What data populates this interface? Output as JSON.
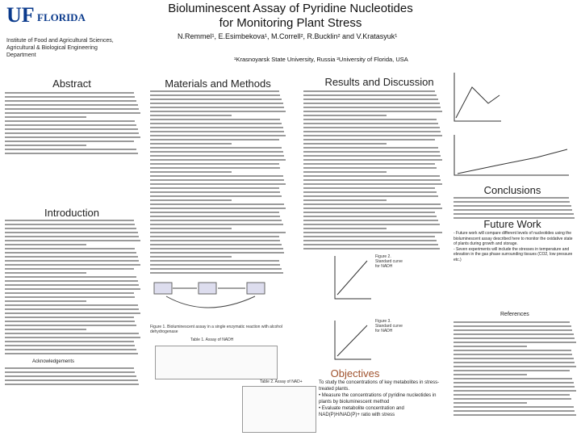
{
  "header": {
    "logo": "UF",
    "logo_sub": "FLORIDA",
    "institute": "Institute of Food and Agricultural Sciences, Agricultural & Biological Engineering Department",
    "title": "Bioluminescent Assay of Pyridine Nucleotides for Monitoring Plant Stress",
    "authors": "N.Remmel¹, E.Esimbekova¹, M.Correll², R.Bucklin² and V.Kratasyuk¹",
    "affiliations": "¹Krasnoyarsk State University, Russia ²University of Florida, USA"
  },
  "sections": {
    "abstract": "Abstract",
    "introduction": "Introduction",
    "acknowledgements": "Acknowledgements",
    "methods": "Materials and Methods",
    "results": "Results and Discussion",
    "conclusions": "Conclusions",
    "future_work": "Future Work",
    "references": "References",
    "objectives": "Objectives"
  },
  "figures": {
    "fig1": "Figure 1. Bioluminescent assay in a single enzymatic reaction with alcohol dehydrogenase",
    "fig2": "Figure 2. Standard curve for NADH",
    "fig3": "Figure 3. Standard curve for NADH",
    "table1": "Table 1. Assay of NADH",
    "table2": "Table 2. Assay of NAD+"
  },
  "objectives": {
    "intro": "To study the concentrations of key metabolites in stress-treated plants.",
    "items": [
      "• Measure the concentrations of pyridine nucleotides in plants by bioluminescent method",
      "• Evaluate metabolite concentration and NAD(P)H/NAD(P)+ ratio with stress"
    ]
  },
  "future_work": [
    "- Future work will compare different levels of nucleotides using the bioluminescent assay described here to monitor the oxidative state of plants during growth and storage.",
    "- Seven experiments will include the stresses in temperature and elevation in the gas phase surrounding tissues (CO2, low pressure etc.)"
  ]
}
